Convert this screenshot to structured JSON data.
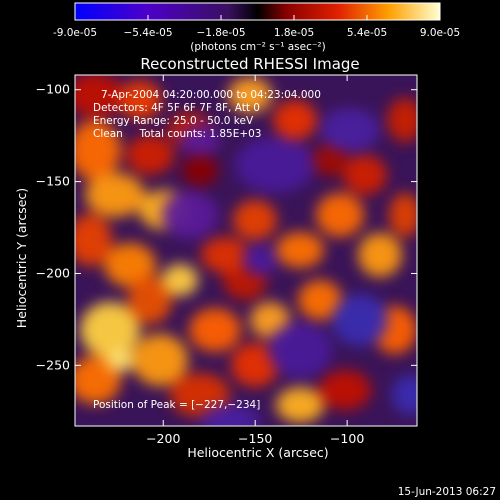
{
  "colorbar": {
    "tick_labels": [
      "-9.0e-05",
      "−5.4e-05",
      "−1.8e-05",
      "1.8e-05",
      "5.4e-05",
      "9.0e-05"
    ],
    "unit_label": "(photons cm⁻² s⁻¹ asec⁻²)",
    "range": [
      -9e-05,
      9e-05
    ]
  },
  "image": {
    "title": "Reconstructed RHESSI Image",
    "info_lines": [
      "7-Apr-2004 04:20:00.000 to 04:23:04.000",
      "Detectors: 4F 5F 6F 7F 8F, Att 0",
      "Energy Range: 25.0 - 50.0 keV",
      "Clean     Total counts: 1.85E+03"
    ],
    "peak_label": "Position of Peak = [−227,−234]"
  },
  "axes": {
    "xlabel": "Heliocentric X (arcsec)",
    "ylabel": "Heliocentric Y (arcsec)",
    "xlim": [
      -248,
      -62
    ],
    "ylim": [
      -283,
      -92
    ],
    "x_ticks": [
      -200,
      -150,
      -100
    ],
    "x_tick_labels": [
      "−200",
      "−150",
      "−100"
    ],
    "y_ticks": [
      -100,
      -150,
      -200,
      -250
    ],
    "y_tick_labels": [
      "−100",
      "−150",
      "−200",
      "−250"
    ]
  },
  "footer": {
    "timestamp": "15-Jun-2013 06:27"
  },
  "colors": {
    "background": "#000000",
    "text": "#ffffff"
  }
}
